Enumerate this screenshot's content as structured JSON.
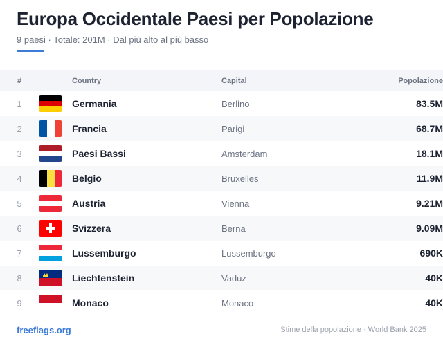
{
  "header": {
    "title": "Europa Occidentale Paesi per Popolazione",
    "subtitle": "9 paesi · Totale: 201M · Dal più alto al più basso",
    "accent_color": "#3d7bd9"
  },
  "table": {
    "columns": {
      "rank": "#",
      "country": "Country",
      "capital": "Capital",
      "population": "Popolazione"
    },
    "rows": [
      {
        "rank": "1",
        "flag": "de-flag-icon",
        "country": "Germania",
        "capital": "Berlino",
        "population": "83.5M"
      },
      {
        "rank": "2",
        "flag": "fr-flag-icon",
        "country": "Francia",
        "capital": "Parigi",
        "population": "68.7M"
      },
      {
        "rank": "3",
        "flag": "nl-flag-icon",
        "country": "Paesi Bassi",
        "capital": "Amsterdam",
        "population": "18.1M"
      },
      {
        "rank": "4",
        "flag": "be-flag-icon",
        "country": "Belgio",
        "capital": "Bruxelles",
        "population": "11.9M"
      },
      {
        "rank": "5",
        "flag": "at-flag-icon",
        "country": "Austria",
        "capital": "Vienna",
        "population": "9.21M"
      },
      {
        "rank": "6",
        "flag": "ch-flag-icon",
        "country": "Svizzera",
        "capital": "Berna",
        "population": "9.09M"
      },
      {
        "rank": "7",
        "flag": "lu-flag-icon",
        "country": "Lussemburgo",
        "capital": "Lussemburgo",
        "population": "690K"
      },
      {
        "rank": "8",
        "flag": "li-flag-icon",
        "country": "Liechtenstein",
        "capital": "Vaduz",
        "population": "40K"
      },
      {
        "rank": "9",
        "flag": "mc-flag-icon",
        "country": "Monaco",
        "capital": "Monaco",
        "population": "40K"
      }
    ]
  },
  "footer": {
    "link": "freeflags.org",
    "note": "Stime della popolazione · World Bank 2025"
  }
}
